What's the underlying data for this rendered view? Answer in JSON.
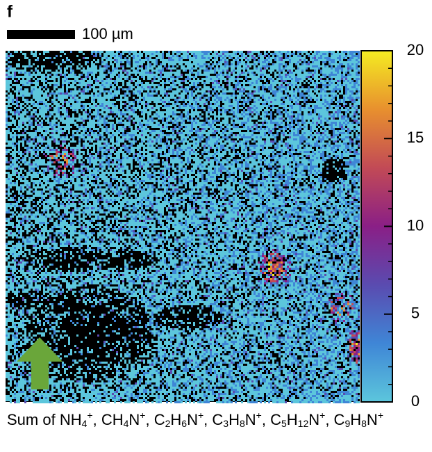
{
  "panel_label": "f",
  "scale_bar": {
    "label": "100 µm"
  },
  "chart_data": {
    "type": "heatmap",
    "clim": [
      0,
      20
    ],
    "cticks": [
      0,
      5,
      10,
      15,
      20
    ],
    "cminor_step": 1,
    "colormap": [
      "#5cc6dc",
      "#3f86d6",
      "#5a4bb0",
      "#8a1f86",
      "#c24a56",
      "#e8902e",
      "#f4ec22"
    ],
    "background": "#000000",
    "arrow_color": "#6aa63a"
  },
  "caption": {
    "prefix": "Sum of ",
    "ions": [
      [
        {
          "t": "NH"
        },
        {
          "sub": "4"
        },
        {
          "sup": "+"
        }
      ],
      [
        {
          "t": "CH"
        },
        {
          "sub": "4"
        },
        {
          "t": "N"
        },
        {
          "sup": "+"
        }
      ],
      [
        {
          "t": "C"
        },
        {
          "sub": "2"
        },
        {
          "t": "H"
        },
        {
          "sub": "6"
        },
        {
          "t": "N"
        },
        {
          "sup": "+"
        }
      ],
      [
        {
          "t": "C"
        },
        {
          "sub": "3"
        },
        {
          "t": "H"
        },
        {
          "sub": "8"
        },
        {
          "t": "N"
        },
        {
          "sup": "+"
        }
      ],
      [
        {
          "t": "C"
        },
        {
          "sub": "5"
        },
        {
          "t": "H"
        },
        {
          "sub": "12"
        },
        {
          "t": "N"
        },
        {
          "sup": "+"
        }
      ],
      [
        {
          "t": "C"
        },
        {
          "sub": "9"
        },
        {
          "t": "H"
        },
        {
          "sub": "8"
        },
        {
          "t": "N"
        },
        {
          "sup": "+"
        }
      ]
    ]
  }
}
